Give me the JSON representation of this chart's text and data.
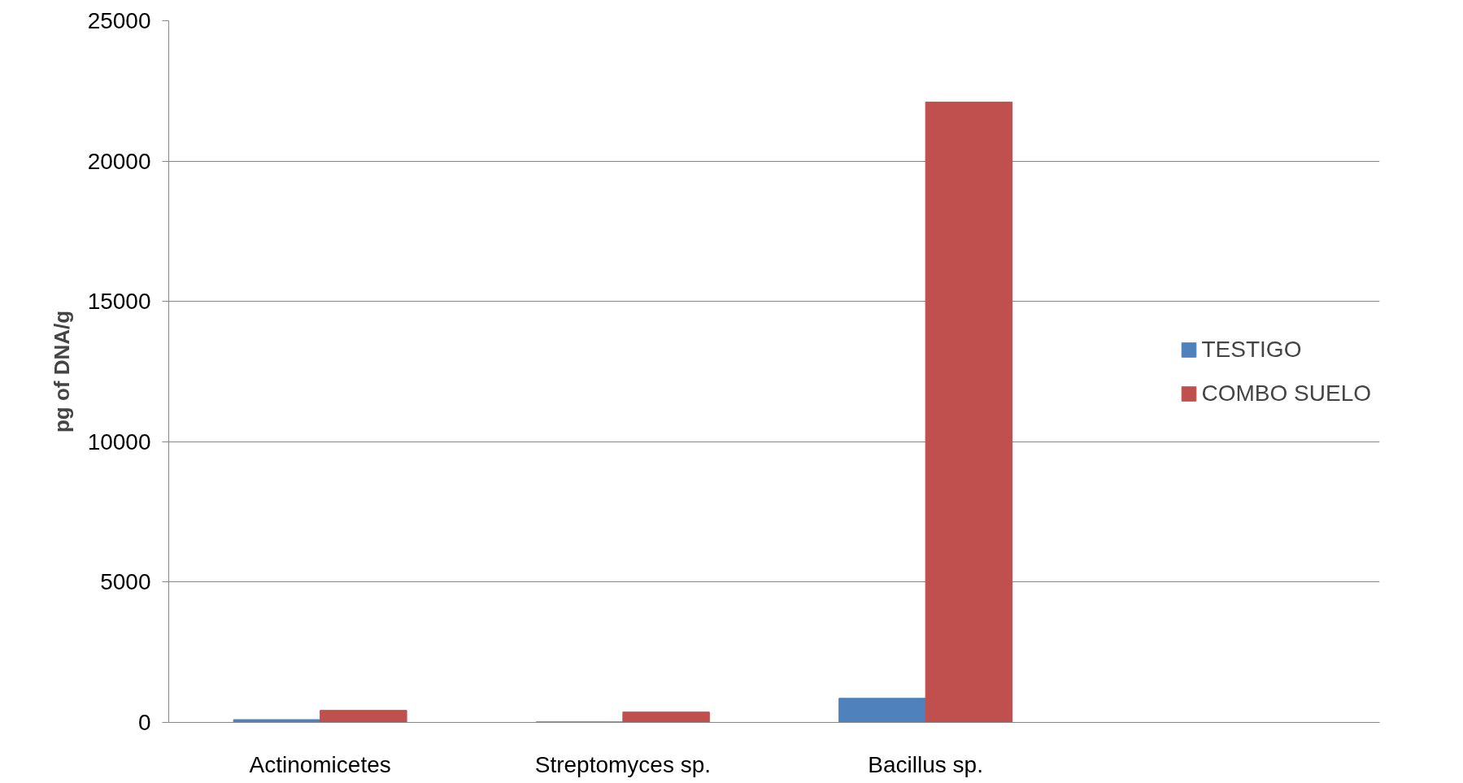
{
  "chart_data": {
    "type": "bar",
    "ylabel": "pg of DNA/g",
    "categories": [
      "Actinomicetes",
      "Streptomyces sp.",
      "Bacillus sp.",
      null
    ],
    "series": [
      {
        "name": "TESTIGO",
        "color": "#4f81bd",
        "values": [
          100,
          20,
          860,
          null
        ]
      },
      {
        "name": "COMBO SUELO",
        "color": "#c0504d",
        "values": [
          430,
          370,
          22100,
          null
        ]
      }
    ],
    "ylim": [
      0,
      25000
    ],
    "yticks": [
      0,
      5000,
      10000,
      15000,
      20000,
      25000
    ],
    "grid": "y",
    "legend": "right"
  }
}
